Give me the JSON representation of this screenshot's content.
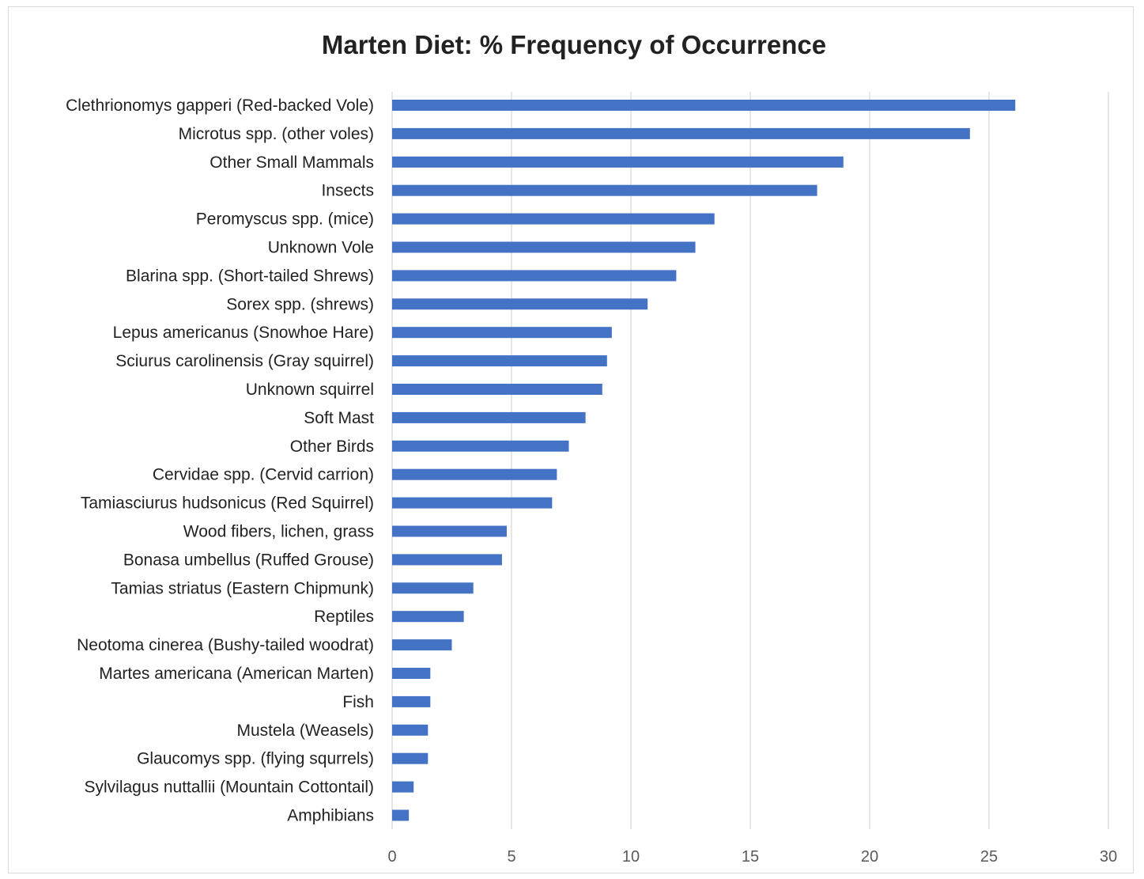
{
  "chart_data": {
    "type": "bar",
    "orientation": "horizontal",
    "title": "Marten Diet: % Frequency of Occurrence",
    "xlabel": "",
    "ylabel": "",
    "xlim": [
      0,
      30
    ],
    "xticks": [
      0,
      5,
      10,
      15,
      20,
      25,
      30
    ],
    "grid": "vertical",
    "legend": "none",
    "bar_color": "#4472C4",
    "categories": [
      "Clethrionomys gapperi (Red-backed Vole)",
      "Microtus spp. (other voles)",
      "Other Small Mammals",
      "Insects",
      "Peromyscus spp. (mice)",
      "Unknown Vole",
      "Blarina spp. (Short-tailed Shrews)",
      "Sorex spp. (shrews)",
      "Lepus americanus (Snowhoe Hare)",
      "Sciurus carolinensis (Gray squirrel)",
      "Unknown squirrel",
      "Soft Mast",
      "Other Birds",
      "Cervidae spp. (Cervid carrion)",
      "Tamiasciurus hudsonicus (Red Squirrel)",
      "Wood fibers, lichen, grass",
      "Bonasa umbellus (Ruffed Grouse)",
      "Tamias striatus (Eastern Chipmunk)",
      "Reptiles",
      "Neotoma cinerea (Bushy-tailed woodrat)",
      "Martes americana (American Marten)",
      "Fish",
      "Mustela  (Weasels)",
      "Glaucomys spp. (flying squrrels)",
      "Sylvilagus nuttallii (Mountain Cottontail)",
      "Amphibians"
    ],
    "values": [
      26.1,
      24.2,
      18.9,
      17.8,
      13.5,
      12.7,
      11.9,
      10.7,
      9.2,
      9.0,
      8.8,
      8.1,
      7.4,
      6.9,
      6.7,
      4.8,
      4.6,
      3.4,
      3.0,
      2.5,
      1.6,
      1.6,
      1.5,
      1.5,
      0.9,
      0.7
    ]
  }
}
